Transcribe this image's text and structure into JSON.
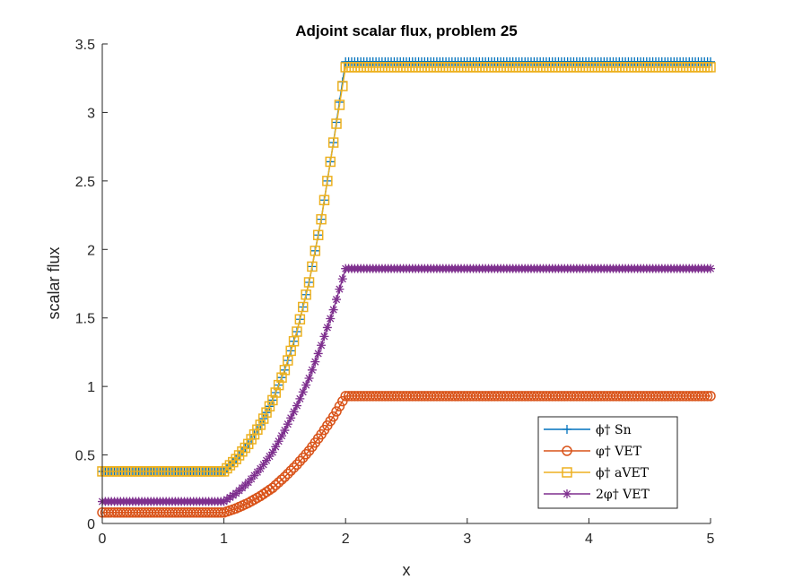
{
  "chart_data": {
    "type": "line",
    "title": "Adjoint scalar flux, problem 25",
    "xlabel": "x",
    "ylabel": "scalar flux",
    "xlim": [
      0,
      5
    ],
    "ylim": [
      0,
      3.5
    ],
    "xticks": [
      "0",
      "1",
      "2",
      "3",
      "4",
      "5"
    ],
    "yticks": [
      "0",
      "0.5",
      "1",
      "1.5",
      "2",
      "2.5",
      "3",
      "3.5"
    ],
    "grid": false,
    "legend_position": "bottom-right",
    "series": [
      {
        "name": "ϕ† Sn",
        "color": "#0072BD",
        "marker": "plus",
        "x": [
          0,
          1,
          1.1,
          1.2,
          1.3,
          1.4,
          1.5,
          1.6,
          1.7,
          1.8,
          1.9,
          2,
          5
        ],
        "y": [
          0.38,
          0.38,
          0.47,
          0.58,
          0.72,
          0.9,
          1.12,
          1.4,
          1.76,
          2.22,
          2.78,
          3.37,
          3.37
        ]
      },
      {
        "name": "φ† VET",
        "color": "#D95319",
        "marker": "circle",
        "x": [
          0,
          1,
          1.1,
          1.2,
          1.3,
          1.4,
          1.5,
          1.6,
          1.7,
          1.8,
          1.9,
          2,
          5
        ],
        "y": [
          0.08,
          0.08,
          0.11,
          0.15,
          0.2,
          0.26,
          0.34,
          0.43,
          0.53,
          0.65,
          0.78,
          0.93,
          0.93
        ]
      },
      {
        "name": "ϕ† aVET",
        "color": "#EDB120",
        "marker": "square",
        "x": [
          0,
          1,
          1.1,
          1.2,
          1.3,
          1.4,
          1.5,
          1.6,
          1.7,
          1.8,
          1.9,
          2,
          5
        ],
        "y": [
          0.38,
          0.38,
          0.47,
          0.58,
          0.72,
          0.9,
          1.12,
          1.4,
          1.76,
          2.22,
          2.78,
          3.33,
          3.33
        ]
      },
      {
        "name": "2φ† VET",
        "color": "#7E2F8E",
        "marker": "asterisk",
        "x": [
          0,
          1,
          1.1,
          1.2,
          1.3,
          1.4,
          1.5,
          1.6,
          1.7,
          1.8,
          1.9,
          2,
          5
        ],
        "y": [
          0.16,
          0.16,
          0.22,
          0.3,
          0.4,
          0.52,
          0.68,
          0.86,
          1.06,
          1.3,
          1.56,
          1.86,
          1.86
        ]
      }
    ]
  }
}
